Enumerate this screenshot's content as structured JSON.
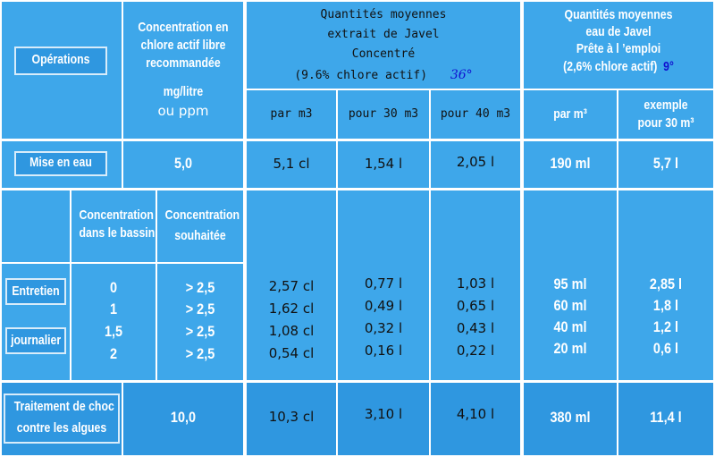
{
  "header": {
    "operations": "Opérations",
    "concentration": [
      "Concentration en",
      "chlore actif libre",
      "recommandée",
      "mg/litre",
      "ou ppm"
    ],
    "javel_concentre": [
      "Quantités moyennes",
      "extrait de Javel",
      "Concentré",
      "(9.6% chlore actif)"
    ],
    "javel_concentre_degree": "36°",
    "javel_emploi": [
      "Quantités moyennes",
      "eau de Javel",
      "Prête à l ’emploi",
      "(2,6% chlore actif)"
    ],
    "javel_emploi_degree": "9°",
    "sub": [
      "par m3",
      "pour 30 m3",
      "pour 40 m3",
      "par m³",
      "exemple",
      "pour 30 m³"
    ]
  },
  "rows": {
    "mise_en_eau": {
      "label": "Mise en eau",
      "concentration": "5,0",
      "values": [
        "5,1 cl",
        "1,54 l",
        "2,05 l",
        "190 ml",
        "5,7 l"
      ]
    },
    "entretien": {
      "label_1": "Entretien",
      "label_2": "journalier",
      "col_bassin": [
        "Concentration",
        "dans le bassin"
      ],
      "col_souhaitee": [
        "Concentration",
        "souhaitée"
      ],
      "bassin": [
        "0",
        "1",
        "1,5",
        "2"
      ],
      "souhaitee": [
        "> 2,5",
        "> 2,5",
        "> 2,5",
        "> 2,5"
      ],
      "par_m3": [
        "2,57 cl",
        "1,62 cl",
        "1,08 cl",
        "0,54 cl"
      ],
      "pour_30": [
        "0,77 l",
        "0,49 l",
        "0,32 l",
        "0,16 l"
      ],
      "pour_40": [
        "1,03 l",
        "0,65 l",
        "0,43 l",
        "0,22 l"
      ],
      "emploi_par_m3": [
        "95 ml",
        "60 ml",
        "40 ml",
        "20 ml"
      ],
      "emploi_30": [
        "2,85 l",
        "1,8 l",
        "1,2 l",
        "0,6 l"
      ]
    },
    "choc": {
      "label": [
        "Traitement de choc",
        "contre les algues"
      ],
      "concentration": "10,0",
      "values": [
        "10,3 cl",
        "3,10 l",
        "4,10 l",
        "380 ml",
        "11,4 l"
      ]
    }
  }
}
